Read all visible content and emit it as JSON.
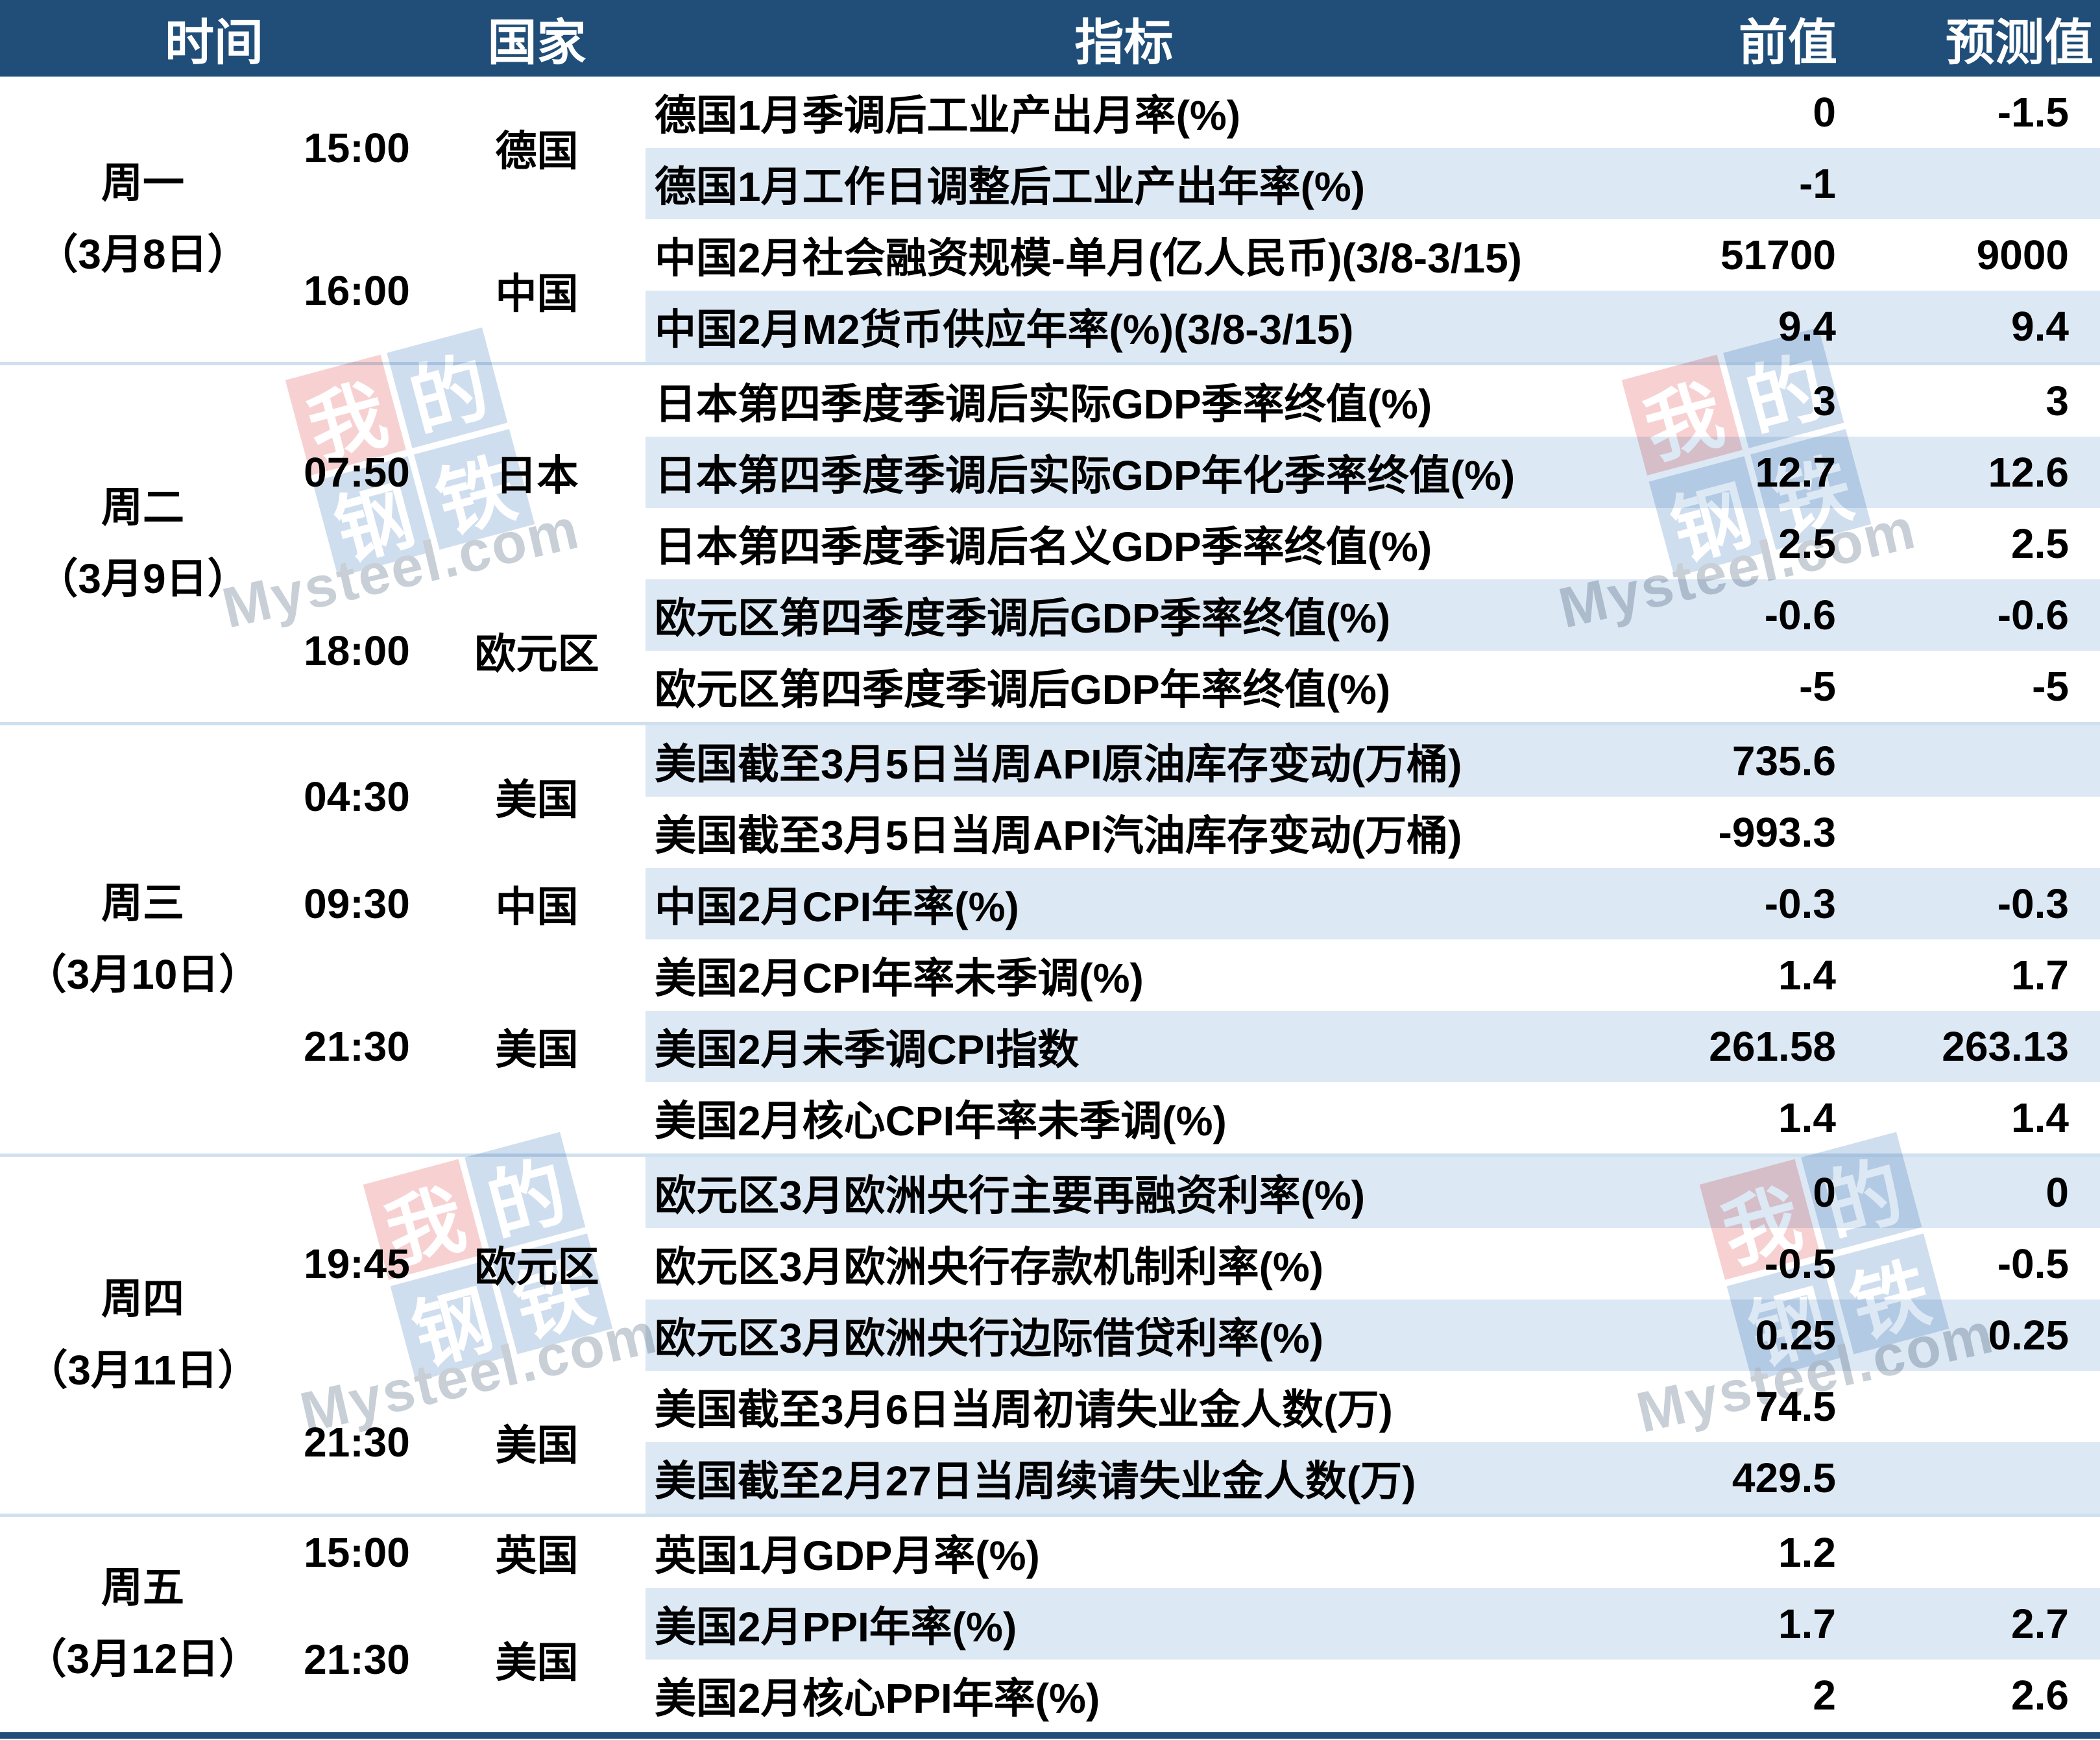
{
  "table": {
    "headers": {
      "time": "时间",
      "country": "国家",
      "indicator": "指标",
      "previous": "前值",
      "forecast": "预测值"
    },
    "days": [
      {
        "day_label": "周一",
        "date_label": "（3月8日）",
        "groups": [
          {
            "time": "15:00",
            "country": "德国",
            "rows": [
              {
                "indicator": "德国1月季调后工业产出月率(%)",
                "previous": "0",
                "forecast": "-1.5"
              },
              {
                "indicator": "德国1月工作日调整后工业产出年率(%)",
                "previous": "-1",
                "forecast": ""
              }
            ]
          },
          {
            "time": "16:00",
            "country": "中国",
            "rows": [
              {
                "indicator": "中国2月社会融资规模-单月(亿人民币)(3/8-3/15)",
                "previous": "51700",
                "forecast": "9000"
              },
              {
                "indicator": "中国2月M2货币供应年率(%)(3/8-3/15)",
                "previous": "9.4",
                "forecast": "9.4"
              }
            ]
          }
        ]
      },
      {
        "day_label": "周二",
        "date_label": "（3月9日）",
        "groups": [
          {
            "time": "07:50",
            "country": "日本",
            "rows": [
              {
                "indicator": "日本第四季度季调后实际GDP季率终值(%)",
                "previous": "3",
                "forecast": "3"
              },
              {
                "indicator": "日本第四季度季调后实际GDP年化季率终值(%)",
                "previous": "12.7",
                "forecast": "12.6"
              },
              {
                "indicator": "日本第四季度季调后名义GDP季率终值(%)",
                "previous": "2.5",
                "forecast": "2.5"
              }
            ]
          },
          {
            "time": "18:00",
            "country": "欧元区",
            "rows": [
              {
                "indicator": "欧元区第四季度季调后GDP季率终值(%)",
                "previous": "-0.6",
                "forecast": "-0.6"
              },
              {
                "indicator": "欧元区第四季度季调后GDP年率终值(%)",
                "previous": "-5",
                "forecast": "-5"
              }
            ]
          }
        ]
      },
      {
        "day_label": "周三",
        "date_label": "（3月10日）",
        "groups": [
          {
            "time": "04:30",
            "country": "美国",
            "rows": [
              {
                "indicator": "美国截至3月5日当周API原油库存变动(万桶)",
                "previous": "735.6",
                "forecast": ""
              },
              {
                "indicator": "美国截至3月5日当周API汽油库存变动(万桶)",
                "previous": "-993.3",
                "forecast": ""
              }
            ]
          },
          {
            "time": "09:30",
            "country": "中国",
            "rows": [
              {
                "indicator": "中国2月CPI年率(%)",
                "previous": "-0.3",
                "forecast": "-0.3"
              }
            ]
          },
          {
            "time": "21:30",
            "country": "美国",
            "rows": [
              {
                "indicator": "美国2月CPI年率未季调(%)",
                "previous": "1.4",
                "forecast": "1.7"
              },
              {
                "indicator": "美国2月未季调CPI指数",
                "previous": "261.58",
                "forecast": "263.13"
              },
              {
                "indicator": "美国2月核心CPI年率未季调(%)",
                "previous": "1.4",
                "forecast": "1.4"
              }
            ]
          }
        ]
      },
      {
        "day_label": "周四",
        "date_label": "（3月11日）",
        "groups": [
          {
            "time": "19:45",
            "country": "欧元区",
            "rows": [
              {
                "indicator": "欧元区3月欧洲央行主要再融资利率(%)",
                "previous": "0",
                "forecast": "0"
              },
              {
                "indicator": "欧元区3月欧洲央行存款机制利率(%)",
                "previous": "-0.5",
                "forecast": "-0.5"
              },
              {
                "indicator": "欧元区3月欧洲央行边际借贷利率(%)",
                "previous": "0.25",
                "forecast": "0.25"
              }
            ]
          },
          {
            "time": "21:30",
            "country": "美国",
            "rows": [
              {
                "indicator": "美国截至3月6日当周初请失业金人数(万)",
                "previous": "74.5",
                "forecast": ""
              },
              {
                "indicator": "美国截至2月27日当周续请失业金人数(万)",
                "previous": "429.5",
                "forecast": ""
              }
            ]
          }
        ]
      },
      {
        "day_label": "周五",
        "date_label": "（3月12日）",
        "groups": [
          {
            "time": "15:00",
            "country": "英国",
            "rows": [
              {
                "indicator": "英国1月GDP月率(%)",
                "previous": "1.2",
                "forecast": ""
              }
            ]
          },
          {
            "time": "21:30",
            "country": "美国",
            "rows": [
              {
                "indicator": "美国2月PPI年率(%)",
                "previous": "1.7",
                "forecast": "2.7"
              },
              {
                "indicator": "美国2月核心PPI年率(%)",
                "previous": "2",
                "forecast": "2.6"
              }
            ]
          }
        ]
      }
    ]
  },
  "watermark": {
    "logo_chars": [
      "我",
      "的",
      "钢",
      "铁"
    ],
    "text": "Mysteel.com"
  },
  "colors": {
    "header_bg": "#204E78",
    "header_text": "#FFFFFF",
    "stripe_row": "#DCE8F4",
    "section_separator": "#CFE0EF",
    "bottom_border": "#204E78",
    "body_text": "#000000",
    "watermark_red_tile": "#F0ABAB",
    "watermark_blue_tile": "#A8C2E0",
    "watermark_text": "#9AA7B4"
  },
  "chart_data": {
    "type": "table",
    "title": "本周重要经济数据日历 (3月8日-3月12日)",
    "columns": [
      "时间(日期)",
      "时间",
      "国家",
      "指标",
      "前值",
      "预测值"
    ],
    "rows": [
      [
        "周一（3月8日）",
        "15:00",
        "德国",
        "德国1月季调后工业产出月率(%)",
        "0",
        "-1.5"
      ],
      [
        "周一（3月8日）",
        "15:00",
        "德国",
        "德国1月工作日调整后工业产出年率(%)",
        "-1",
        ""
      ],
      [
        "周一（3月8日）",
        "16:00",
        "中国",
        "中国2月社会融资规模-单月(亿人民币)(3/8-3/15)",
        "51700",
        "9000"
      ],
      [
        "周一（3月8日）",
        "16:00",
        "中国",
        "中国2月M2货币供应年率(%)(3/8-3/15)",
        "9.4",
        "9.4"
      ],
      [
        "周二（3月9日）",
        "07:50",
        "日本",
        "日本第四季度季调后实际GDP季率终值(%)",
        "3",
        "3"
      ],
      [
        "周二（3月9日）",
        "07:50",
        "日本",
        "日本第四季度季调后实际GDP年化季率终值(%)",
        "12.7",
        "12.6"
      ],
      [
        "周二（3月9日）",
        "07:50",
        "日本",
        "日本第四季度季调后名义GDP季率终值(%)",
        "2.5",
        "2.5"
      ],
      [
        "周二（3月9日）",
        "18:00",
        "欧元区",
        "欧元区第四季度季调后GDP季率终值(%)",
        "-0.6",
        "-0.6"
      ],
      [
        "周二（3月9日）",
        "18:00",
        "欧元区",
        "欧元区第四季度季调后GDP年率终值(%)",
        "-5",
        "-5"
      ],
      [
        "周三（3月10日）",
        "04:30",
        "美国",
        "美国截至3月5日当周API原油库存变动(万桶)",
        "735.6",
        ""
      ],
      [
        "周三（3月10日）",
        "04:30",
        "美国",
        "美国截至3月5日当周API汽油库存变动(万桶)",
        "-993.3",
        ""
      ],
      [
        "周三（3月10日）",
        "09:30",
        "中国",
        "中国2月CPI年率(%)",
        "-0.3",
        "-0.3"
      ],
      [
        "周三（3月10日）",
        "21:30",
        "美国",
        "美国2月CPI年率未季调(%)",
        "1.4",
        "1.7"
      ],
      [
        "周三（3月10日）",
        "21:30",
        "美国",
        "美国2月未季调CPI指数",
        "261.58",
        "263.13"
      ],
      [
        "周三（3月10日）",
        "21:30",
        "美国",
        "美国2月核心CPI年率未季调(%)",
        "1.4",
        "1.4"
      ],
      [
        "周四（3月11日）",
        "19:45",
        "欧元区",
        "欧元区3月欧洲央行主要再融资利率(%)",
        "0",
        "0"
      ],
      [
        "周四（3月11日）",
        "19:45",
        "欧元区",
        "欧元区3月欧洲央行存款机制利率(%)",
        "-0.5",
        "-0.5"
      ],
      [
        "周四（3月11日）",
        "19:45",
        "欧元区",
        "欧元区3月欧洲央行边际借贷利率(%)",
        "0.25",
        "0.25"
      ],
      [
        "周四（3月11日）",
        "21:30",
        "美国",
        "美国截至3月6日当周初请失业金人数(万)",
        "74.5",
        ""
      ],
      [
        "周四（3月11日）",
        "21:30",
        "美国",
        "美国截至2月27日当周续请失业金人数(万)",
        "429.5",
        ""
      ],
      [
        "周五（3月12日）",
        "15:00",
        "英国",
        "英国1月GDP月率(%)",
        "1.2",
        ""
      ],
      [
        "周五（3月12日）",
        "21:30",
        "美国",
        "美国2月PPI年率(%)",
        "1.7",
        "2.7"
      ],
      [
        "周五（3月12日）",
        "21:30",
        "美国",
        "美国2月核心PPI年率(%)",
        "2",
        "2.6"
      ]
    ]
  }
}
